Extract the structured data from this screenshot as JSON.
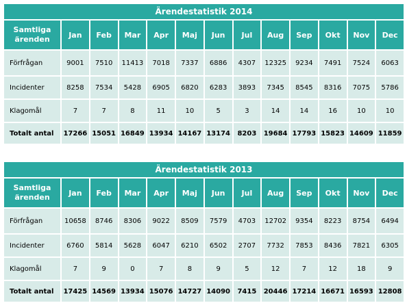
{
  "months": [
    "Jan",
    "Feb",
    "Mar",
    "Apr",
    "Maj",
    "Jun",
    "Jul",
    "Aug",
    "Sep",
    "Okt",
    "Nov",
    "Dec"
  ],
  "tables": [
    {
      "title": "Ärendestatistik 2014",
      "header_label": "Samtliga ärenden",
      "rows": [
        {
          "label": "Förfrågan",
          "values": [
            "9001",
            "7510",
            "11413",
            "7018",
            "7337",
            "6886",
            "4307",
            "12325",
            "9234",
            "7491",
            "7524",
            "6063"
          ]
        },
        {
          "label": "Incidenter",
          "values": [
            "8258",
            "7534",
            "5428",
            "6905",
            "6820",
            "6283",
            "3893",
            "7345",
            "8545",
            "8316",
            "7075",
            "5786"
          ]
        },
        {
          "label": "Klagomål",
          "values": [
            "7",
            "7",
            "8",
            "11",
            "10",
            "5",
            "3",
            "14",
            "14",
            "16",
            "10",
            "10"
          ]
        },
        {
          "label": "Totalt antal",
          "values": [
            "17266",
            "15051",
            "16849",
            "13934",
            "14167",
            "13174",
            "8203",
            "19684",
            "17793",
            "15823",
            "14609",
            "11859"
          ]
        }
      ]
    },
    {
      "title": "Ärendestatistik 2013",
      "header_label": "Samtliga ärenden",
      "rows": [
        {
          "label": "Förfrågan",
          "values": [
            "10658",
            "8746",
            "8306",
            "9022",
            "8509",
            "7579",
            "4703",
            "12702",
            "9354",
            "8223",
            "8754",
            "6494"
          ]
        },
        {
          "label": "Incidenter",
          "values": [
            "6760",
            "5814",
            "5628",
            "6047",
            "6210",
            "6502",
            "2707",
            "7732",
            "7853",
            "8436",
            "7821",
            "6305"
          ]
        },
        {
          "label": "Klagomål",
          "values": [
            "7",
            "9",
            "0",
            "7",
            "8",
            "9",
            "5",
            "12",
            "7",
            "12",
            "18",
            "9"
          ]
        },
        {
          "label": "Totalt antal",
          "values": [
            "17425",
            "14569",
            "13934",
            "15076",
            "14727",
            "14090",
            "7415",
            "20446",
            "17214",
            "16671",
            "16593",
            "12808"
          ]
        }
      ]
    }
  ]
}
